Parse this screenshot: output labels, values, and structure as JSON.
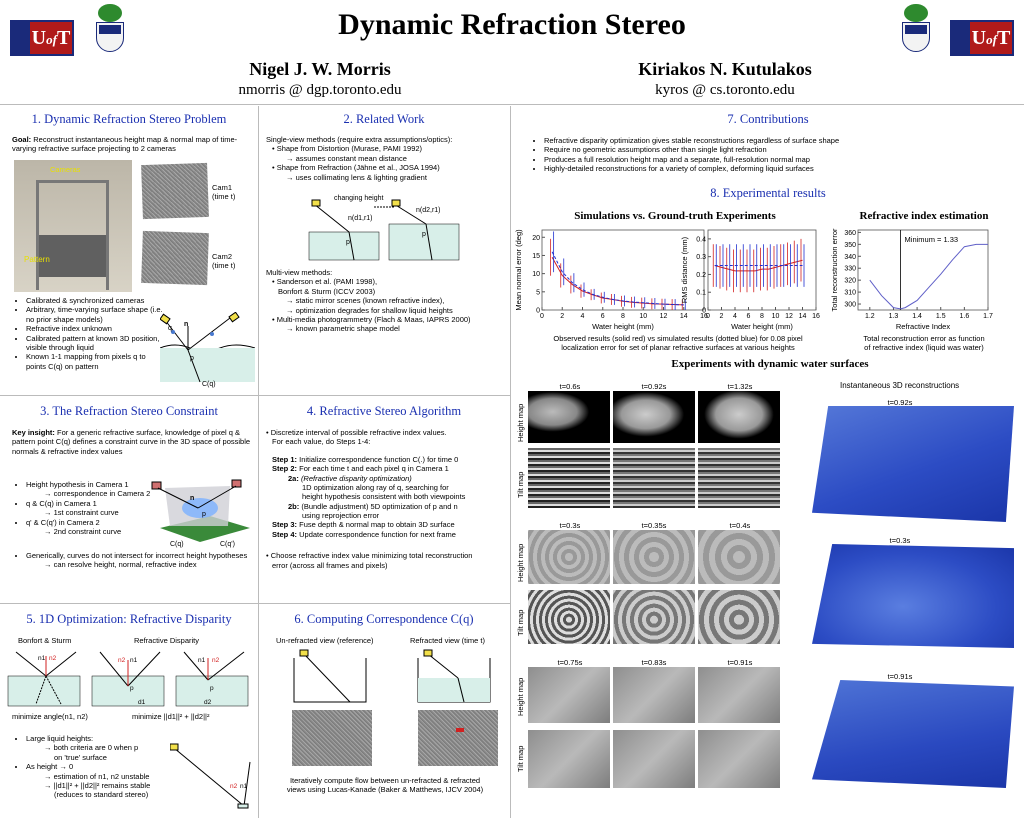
{
  "header": {
    "title": "Dynamic Refraction Stereo",
    "author1": {
      "name": "Nigel J. W. Morris",
      "email": "nmorris @ dgp.toronto.edu"
    },
    "author2": {
      "name": "Kiriakos N. Kutulakos",
      "email": "kyros @ cs.toronto.edu"
    },
    "logo_text": "UofT"
  },
  "s1": {
    "title": "1. Dynamic Refraction Stereo Problem",
    "goal_label": "Goal:",
    "goal": "Reconstruct instantaneous height map & normal map of time-varying refractive surface projecting to 2 cameras",
    "cam1": "Cam1",
    "cam1t": "(time t)",
    "cam2": "Cam2",
    "cam2t": "(time t)",
    "cameras": "Cameras",
    "pattern": "Pattern",
    "bullets": [
      "Calibrated & synchronized cameras",
      "Arbitrary, time-varying surface shape (i.e. no prior shape models)",
      "Refractive index unknown",
      "Calibrated pattern at known 3D position, visible through liquid",
      "Known 1-1 mapping from pixels q to points C(q) on pattern"
    ],
    "lbl_q": "q",
    "lbl_n": "n",
    "lbl_p": "p",
    "lbl_cq": "C(q)"
  },
  "s2": {
    "title": "2. Related Work",
    "single": "Single-view methods (require extra assumptions/optics):",
    "i1": "• Shape from Distortion (Murase, PAMI 1992)",
    "i1a": "→ assumes constant mean distance",
    "i2": "• Shape from Refraction (Jähne et al., JOSA 1994)",
    "i2a": "→ uses collimating lens & lighting gradient",
    "changing": "changing height",
    "nd1": "n(d1,r1)",
    "nd2": "n(d2,r1)",
    "p": "p",
    "multi": "Multi-view methods:",
    "m1": "• Sanderson et al. (PAMI 1998),",
    "m1b": "Bonfort & Sturm (ICCV 2003)",
    "m1c": "→ static mirror scenes (known refractive index),",
    "m1d": "→ optimization degrades for shallow liquid heights",
    "m2": "• Multi-media photogrammetry (Flach & Maas, IAPRS 2000)",
    "m2a": "→ known parametric shape model"
  },
  "s3": {
    "title": "3. The Refraction Stereo Constraint",
    "key_label": "Key insight:",
    "key": "For a generic refractive surface, knowledge of pixel q & pattern point C(q) defines a constraint curve in the 3D space of possible normals & refractive index values",
    "b1": "Height hypothesis in Camera 1",
    "b1a": "→ correspondence in Camera 2",
    "b2": "q & C(q) in Camera 1",
    "b2a": "→ 1st constraint curve",
    "b3": "q' & C(q') in Camera 2",
    "b3a": "→ 2nd constraint curve",
    "b4": "Generically, curves do not intersect for incorrect height hypotheses",
    "b4a": "→ can resolve height, normal, refractive index",
    "lbl_n": "n",
    "lbl_p": "p",
    "lbl_cq": "C(q)",
    "lbl_cq2": "C(q')"
  },
  "s4": {
    "title": "4. Refractive Stereo Algorithm",
    "intro1": "• Discretize interval of possible refractive index values.",
    "intro2": "For each value, do Steps 1-4:",
    "s1l": "Step 1:",
    "s1": "Initialize correspondence function C(.) for time 0",
    "s2l": "Step 2:",
    "s2": "For each time t and each pixel q in Camera 1",
    "s2al": "2a:",
    "s2a": "(Refractive disparity optimization)",
    "s2a2": "1D optimization along ray of q, searching for",
    "s2a3": "height hypothesis consistent with both viewpoints",
    "s2bl": "2b:",
    "s2b": "(Bundle adjustment) 5D optimization of p and n",
    "s2b2": "using reprojection error",
    "s3l": "Step 3:",
    "s3": "Fuse depth & normal map to obtain 3D surface",
    "s4l": "Step 4:",
    "s4": "Update correspondence function for next frame",
    "choose1": "• Choose refractive index value minimizing total reconstruction",
    "choose2": "error (across all frames and pixels)"
  },
  "s5": {
    "title": "5. 1D Optimization: Refractive Disparity",
    "bonfort": "Bonfort & Sturm",
    "refdisp": "Refractive Disparity",
    "min1": "minimize angle(n1, n2)",
    "min2": "minimize ||d1||² + ||d2||²",
    "b1": "Large liquid heights:",
    "b1a": "→ both criteria are 0 when p",
    "b1b": "on 'true' surface",
    "b2": "As height → 0",
    "b2a": "→ estimation of n1, n2 unstable",
    "b2b": "→ ||d1||² + ||d2||² remains stable",
    "b2c": "(reduces to standard stereo)",
    "n1": "n1",
    "n2": "n2",
    "p": "p",
    "d1": "d1",
    "d2": "d2"
  },
  "s6": {
    "title": "6. Computing Correspondence C(q)",
    "unref": "Un-refracted view (reference)",
    "ref": "Refracted view (time t)",
    "cap1": "Iteratively compute flow between un-refracted & refracted",
    "cap2": "views using Lucas-Kanade (Baker & Matthews, IJCV 2004)"
  },
  "s7": {
    "title": "7. Contributions",
    "bullets": [
      "Refractive disparity optimization gives stable reconstructions regardless of surface shape",
      "Require no geometric assumptions other than single light refraction",
      "Produces a full resolution height map and a separate, full-resolution normal map",
      "Highly-detailed reconstructions for a variety of complex, deforming liquid surfaces"
    ]
  },
  "s8": {
    "title": "8. Experimental results",
    "sim_title": "Simulations vs. Ground-truth Experiments",
    "ri_title": "Refractive index estimation",
    "sim_cap1": "Observed results (solid red) vs simulated results (dotted blue) for 0.08 pixel",
    "sim_cap2": "localization error for set of planar refractive surfaces at various heights",
    "ri_cap1": "Total reconstruction error as function",
    "ri_cap2": "of refractive index (liquid was water)",
    "dyn_title": "Experiments with dynamic water surfaces",
    "inst": "Instantaneous 3D reconstructions",
    "height_map": "Height map",
    "tilt_map": "Tilt map",
    "rows": [
      {
        "times": [
          "t=0.6s",
          "t=0.92s",
          "t=1.32s"
        ],
        "recon": "t=0.92s"
      },
      {
        "times": [
          "t=0.3s",
          "t=0.35s",
          "t=0.4s"
        ],
        "recon": "t=0.3s"
      },
      {
        "times": [
          "t=0.75s",
          "t=0.83s",
          "t=0.91s"
        ],
        "recon": "t=0.91s"
      }
    ]
  },
  "chart_data": [
    {
      "type": "line",
      "xlabel": "Water height (mm)",
      "ylabel": "Mean normal error (deg)",
      "xlim": [
        0,
        16
      ],
      "ylim": [
        0,
        22
      ],
      "xticks": [
        0,
        2,
        4,
        6,
        8,
        10,
        12,
        14,
        16
      ],
      "yticks": [
        0,
        5,
        10,
        15,
        20
      ],
      "x": [
        1,
        2,
        3,
        4,
        5,
        6,
        7,
        8,
        9,
        10,
        11,
        12,
        13,
        14
      ],
      "series": [
        {
          "values": [
            14.5,
            9.5,
            7,
            5.2,
            4.2,
            3.3,
            2.9,
            2.4,
            2.1,
            1.9,
            1.7,
            1.6,
            1.5,
            1.4
          ],
          "color": "#d22020",
          "style": "solid"
        },
        {
          "values": [
            16,
            10.5,
            7.5,
            5.6,
            4.3,
            3.5,
            2.9,
            2.5,
            2.2,
            2.0,
            1.8,
            1.6,
            1.5,
            1.4
          ],
          "color": "#2030d0",
          "style": "dotted"
        }
      ]
    },
    {
      "type": "line",
      "xlabel": "Water height (mm)",
      "ylabel": "RMS distance (mm)",
      "xlim": [
        0,
        16
      ],
      "ylim": [
        0,
        0.45
      ],
      "xticks": [
        0,
        2,
        4,
        6,
        8,
        10,
        12,
        14,
        16
      ],
      "yticks": [
        0,
        0.1,
        0.2,
        0.3,
        0.4
      ],
      "x": [
        1,
        2,
        3,
        4,
        5,
        6,
        7,
        8,
        9,
        10,
        11,
        12,
        13,
        14
      ],
      "series": [
        {
          "values": [
            0.25,
            0.24,
            0.23,
            0.22,
            0.22,
            0.22,
            0.22,
            0.23,
            0.23,
            0.24,
            0.25,
            0.26,
            0.27,
            0.28
          ],
          "color": "#d22020",
          "style": "solid"
        },
        {
          "values": [
            0.25,
            0.25,
            0.25,
            0.25,
            0.25,
            0.25,
            0.25,
            0.25,
            0.25,
            0.25,
            0.25,
            0.25,
            0.25,
            0.25
          ],
          "color": "#2030d0",
          "style": "dotted"
        }
      ]
    },
    {
      "type": "line",
      "xlabel": "Refractive Index",
      "ylabel": "Total reconstruction error",
      "annotation": "Minimum = 1.33",
      "xlim": [
        1.15,
        1.7
      ],
      "ylim": [
        295,
        362
      ],
      "xticks": [
        1.2,
        1.3,
        1.4,
        1.5,
        1.6,
        1.7
      ],
      "yticks": [
        300,
        310,
        320,
        330,
        340,
        350,
        360
      ],
      "x": [
        1.2,
        1.25,
        1.3,
        1.33,
        1.35,
        1.4,
        1.45,
        1.5,
        1.55,
        1.6,
        1.65,
        1.7
      ],
      "series": [
        {
          "values": [
            320,
            307,
            297,
            296,
            297,
            303,
            314,
            325,
            337,
            348,
            350,
            350
          ],
          "color": "#6060c8",
          "style": "solid"
        }
      ],
      "vline": 1.33
    }
  ]
}
